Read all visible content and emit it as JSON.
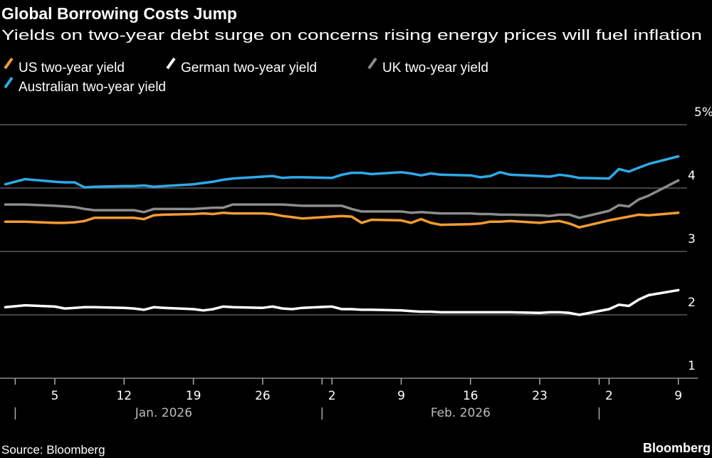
{
  "chart_data": {
    "type": "line",
    "title": "Global Borrowing Costs Jump",
    "subtitle": "Yields on two-year debt surge on concerns rising energy prices will fuel inflation",
    "source": "Source: Bloomberg",
    "brand": "Bloomberg",
    "ylim": [
      1,
      5
    ],
    "yticks": [
      1,
      2,
      3,
      4,
      5
    ],
    "ytick_labels": [
      "1",
      "2",
      "3",
      "4",
      "5%"
    ],
    "xticks": [
      "2026-01-05",
      "2026-01-12",
      "2026-01-19",
      "2026-01-26",
      "2026-02-02",
      "2026-02-09",
      "2026-02-16",
      "2026-02-23",
      "2026-03-02",
      "2026-03-09"
    ],
    "xtick_labels": [
      "5",
      "12",
      "19",
      "26",
      "2",
      "9",
      "16",
      "23",
      "2",
      "9"
    ],
    "month_labels": [
      {
        "date": "2026-01-16",
        "label": "Jan. 2026"
      },
      {
        "date": "2026-02-15",
        "label": "Feb. 2026"
      }
    ],
    "month_separators": [
      "2026-01-01",
      "2026-02-01",
      "2026-03-01"
    ],
    "grid": true,
    "legend_placement": "top-left",
    "x": [
      "2025-12-31",
      "2026-01-02",
      "2026-01-05",
      "2026-01-06",
      "2026-01-07",
      "2026-01-08",
      "2026-01-09",
      "2026-01-12",
      "2026-01-13",
      "2026-01-14",
      "2026-01-15",
      "2026-01-16",
      "2026-01-19",
      "2026-01-20",
      "2026-01-21",
      "2026-01-22",
      "2026-01-23",
      "2026-01-26",
      "2026-01-27",
      "2026-01-28",
      "2026-01-29",
      "2026-01-30",
      "2026-02-02",
      "2026-02-03",
      "2026-02-04",
      "2026-02-05",
      "2026-02-06",
      "2026-02-09",
      "2026-02-10",
      "2026-02-11",
      "2026-02-12",
      "2026-02-13",
      "2026-02-16",
      "2026-02-17",
      "2026-02-18",
      "2026-02-19",
      "2026-02-20",
      "2026-02-23",
      "2026-02-24",
      "2026-02-25",
      "2026-02-26",
      "2026-02-27",
      "2026-03-02",
      "2026-03-03",
      "2026-03-04",
      "2026-03-05",
      "2026-03-06",
      "2026-03-09"
    ],
    "series": [
      {
        "name": "US two-year yield",
        "color": "#f39c32",
        "values": [
          3.47,
          3.47,
          3.45,
          3.45,
          3.46,
          3.48,
          3.53,
          3.53,
          3.53,
          3.51,
          3.57,
          3.58,
          3.59,
          3.6,
          3.59,
          3.61,
          3.6,
          3.6,
          3.59,
          3.56,
          3.54,
          3.52,
          3.55,
          3.56,
          3.55,
          3.45,
          3.5,
          3.49,
          3.45,
          3.51,
          3.45,
          3.42,
          3.43,
          3.44,
          3.47,
          3.47,
          3.48,
          3.45,
          3.47,
          3.48,
          3.44,
          3.38,
          3.49,
          3.52,
          3.55,
          3.58,
          3.57,
          3.61
        ]
      },
      {
        "name": "German two-year yield",
        "color": "#ffffff",
        "values": [
          2.12,
          2.15,
          2.13,
          2.1,
          2.11,
          2.12,
          2.12,
          2.11,
          2.1,
          2.08,
          2.12,
          2.11,
          2.09,
          2.07,
          2.09,
          2.13,
          2.12,
          2.11,
          2.13,
          2.1,
          2.09,
          2.11,
          2.13,
          2.09,
          2.09,
          2.08,
          2.08,
          2.07,
          2.06,
          2.05,
          2.05,
          2.04,
          2.04,
          2.04,
          2.04,
          2.04,
          2.04,
          2.03,
          2.04,
          2.04,
          2.03,
          2.0,
          2.09,
          2.16,
          2.14,
          2.24,
          2.31,
          2.39
        ]
      },
      {
        "name": "UK two-year yield",
        "color": "#8c8c8c",
        "values": [
          3.74,
          3.74,
          3.72,
          3.71,
          3.7,
          3.67,
          3.65,
          3.65,
          3.65,
          3.62,
          3.67,
          3.67,
          3.67,
          3.68,
          3.69,
          3.69,
          3.74,
          3.74,
          3.74,
          3.74,
          3.73,
          3.72,
          3.72,
          3.72,
          3.67,
          3.63,
          3.63,
          3.63,
          3.61,
          3.62,
          3.61,
          3.6,
          3.6,
          3.59,
          3.59,
          3.58,
          3.58,
          3.57,
          3.56,
          3.58,
          3.58,
          3.53,
          3.64,
          3.73,
          3.71,
          3.82,
          3.88,
          4.12
        ]
      },
      {
        "name": "Australian two-year yield",
        "color": "#2fa9e8",
        "values": [
          4.06,
          4.14,
          4.1,
          4.09,
          4.09,
          4.01,
          4.02,
          4.03,
          4.03,
          4.04,
          4.02,
          4.03,
          4.06,
          4.08,
          4.1,
          4.13,
          4.15,
          4.18,
          4.19,
          4.16,
          4.17,
          4.17,
          4.16,
          4.21,
          4.24,
          4.24,
          4.22,
          4.25,
          4.23,
          4.2,
          4.23,
          4.21,
          4.2,
          4.17,
          4.19,
          4.25,
          4.21,
          4.19,
          4.18,
          4.21,
          4.19,
          4.16,
          4.15,
          4.3,
          4.26,
          4.32,
          4.38,
          4.5
        ]
      }
    ]
  }
}
